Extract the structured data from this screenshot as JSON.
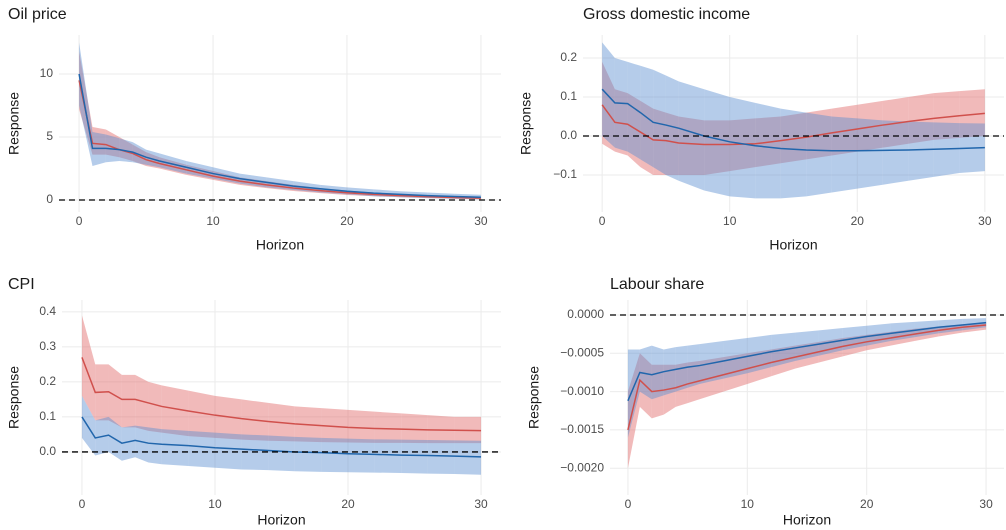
{
  "chart_data": [
    {
      "type": "line",
      "title": "Oil price",
      "xlabel": "Horizon",
      "ylabel": "Response",
      "x": [
        0,
        1,
        2,
        3,
        4,
        5,
        6,
        8,
        10,
        12,
        14,
        16,
        18,
        20,
        22,
        24,
        26,
        28,
        30
      ],
      "xlim": [
        -1.5,
        31.5
      ],
      "xticks": [
        0,
        10,
        20,
        30
      ],
      "ylim": [
        -0.95,
        13.1
      ],
      "yticks": [
        0,
        5,
        10
      ],
      "grid": true,
      "reference_line": 0,
      "series": [
        {
          "color": "#d0504c",
          "band_color": "#e06666",
          "values": [
            9.5,
            4.5,
            4.4,
            4.0,
            3.7,
            3.2,
            2.9,
            2.4,
            1.9,
            1.5,
            1.2,
            0.95,
            0.75,
            0.58,
            0.45,
            0.35,
            0.27,
            0.2,
            0.15
          ],
          "lower": [
            7.2,
            3.6,
            3.6,
            3.4,
            3.1,
            2.7,
            2.5,
            2.0,
            1.6,
            1.2,
            0.95,
            0.72,
            0.55,
            0.4,
            0.3,
            0.22,
            0.15,
            0.1,
            0.06
          ],
          "upper": [
            11.8,
            5.8,
            5.6,
            5.0,
            4.4,
            3.8,
            3.4,
            2.8,
            2.3,
            1.8,
            1.5,
            1.2,
            0.95,
            0.76,
            0.6,
            0.48,
            0.38,
            0.3,
            0.25
          ]
        },
        {
          "color": "#2166ac",
          "band_color": "#5b8fd0",
          "values": [
            10,
            4.1,
            4.1,
            4.0,
            3.8,
            3.4,
            3.1,
            2.6,
            2.1,
            1.7,
            1.4,
            1.1,
            0.9,
            0.7,
            0.55,
            0.45,
            0.35,
            0.28,
            0.22
          ],
          "lower": [
            7.5,
            2.7,
            3.0,
            3.1,
            3.0,
            2.8,
            2.6,
            2.1,
            1.7,
            1.3,
            1.0,
            0.8,
            0.6,
            0.45,
            0.3,
            0.22,
            0.15,
            0.1,
            0.05
          ],
          "upper": [
            12.5,
            5.4,
            5.2,
            4.9,
            4.6,
            4.0,
            3.7,
            3.1,
            2.6,
            2.1,
            1.8,
            1.5,
            1.2,
            1.0,
            0.85,
            0.7,
            0.6,
            0.5,
            0.42
          ]
        }
      ]
    },
    {
      "type": "line",
      "title": "Gross domestic income",
      "xlabel": "Horizon",
      "ylabel": "Response",
      "x": [
        0,
        1,
        2,
        3,
        4,
        5,
        6,
        8,
        10,
        12,
        14,
        16,
        18,
        20,
        22,
        24,
        26,
        28,
        30
      ],
      "xlim": [
        -1.5,
        31.5
      ],
      "xticks": [
        0,
        10,
        20,
        30
      ],
      "ylim": [
        -0.195,
        0.259
      ],
      "yticks": [
        {
          "value": -0.1,
          "label": "−0.1"
        },
        {
          "value": 0,
          "label": "0.0"
        },
        0.1,
        0.2
      ],
      "grid": true,
      "reference_line": 0,
      "series": [
        {
          "color": "#d0504c",
          "band_color": "#e06666",
          "values": [
            0.08,
            0.035,
            0.03,
            0.01,
            -0.01,
            -0.012,
            -0.018,
            -0.022,
            -0.022,
            -0.02,
            -0.012,
            -0.003,
            0.008,
            0.018,
            0.028,
            0.037,
            0.045,
            0.052,
            0.058
          ],
          "lower": [
            -0.02,
            -0.04,
            -0.05,
            -0.08,
            -0.1,
            -0.1,
            -0.1,
            -0.1,
            -0.09,
            -0.08,
            -0.07,
            -0.06,
            -0.05,
            -0.04,
            -0.03,
            -0.02,
            -0.01,
            -0.005,
            0.0
          ],
          "upper": [
            0.19,
            0.12,
            0.11,
            0.09,
            0.07,
            0.06,
            0.05,
            0.04,
            0.04,
            0.045,
            0.05,
            0.06,
            0.07,
            0.08,
            0.09,
            0.1,
            0.11,
            0.115,
            0.12
          ]
        },
        {
          "color": "#2166ac",
          "band_color": "#5b8fd0",
          "values": [
            0.12,
            0.085,
            0.083,
            0.06,
            0.035,
            0.028,
            0.02,
            0.0,
            -0.015,
            -0.025,
            -0.032,
            -0.036,
            -0.038,
            -0.038,
            -0.037,
            -0.036,
            -0.034,
            -0.032,
            -0.03
          ],
          "lower": [
            0.0,
            -0.03,
            -0.04,
            -0.06,
            -0.08,
            -0.1,
            -0.115,
            -0.14,
            -0.155,
            -0.16,
            -0.16,
            -0.155,
            -0.145,
            -0.135,
            -0.125,
            -0.115,
            -0.105,
            -0.095,
            -0.09
          ],
          "upper": [
            0.24,
            0.2,
            0.19,
            0.18,
            0.17,
            0.155,
            0.14,
            0.12,
            0.1,
            0.085,
            0.07,
            0.06,
            0.05,
            0.045,
            0.04,
            0.037,
            0.035,
            0.033,
            0.032
          ]
        }
      ]
    },
    {
      "type": "line",
      "title": "CPI",
      "xlabel": "Horizon",
      "ylabel": "Response",
      "x": [
        0,
        1,
        2,
        3,
        4,
        5,
        6,
        8,
        10,
        12,
        14,
        16,
        18,
        20,
        22,
        24,
        26,
        28,
        30
      ],
      "xlim": [
        -1.5,
        31.5
      ],
      "xticks": [
        0,
        10,
        20,
        30
      ],
      "ylim": [
        -0.123,
        0.434
      ],
      "yticks": [
        {
          "value": 0,
          "label": "0.0"
        },
        0.1,
        0.2,
        0.3,
        0.4
      ],
      "grid": true,
      "reference_line": 0,
      "series": [
        {
          "color": "#d0504c",
          "band_color": "#e06666",
          "values": [
            0.27,
            0.17,
            0.172,
            0.15,
            0.15,
            0.14,
            0.13,
            0.117,
            0.105,
            0.095,
            0.087,
            0.08,
            0.075,
            0.07,
            0.067,
            0.065,
            0.063,
            0.062,
            0.061
          ],
          "lower": [
            0.16,
            0.09,
            0.09,
            0.07,
            0.07,
            0.06,
            0.055,
            0.045,
            0.04,
            0.035,
            0.032,
            0.03,
            0.028,
            0.027,
            0.026,
            0.026,
            0.025,
            0.025,
            0.025
          ],
          "upper": [
            0.39,
            0.25,
            0.25,
            0.22,
            0.22,
            0.2,
            0.19,
            0.175,
            0.16,
            0.15,
            0.14,
            0.13,
            0.125,
            0.12,
            0.115,
            0.11,
            0.105,
            0.1,
            0.1
          ]
        },
        {
          "color": "#2166ac",
          "band_color": "#5b8fd0",
          "values": [
            0.1,
            0.04,
            0.048,
            0.025,
            0.033,
            0.025,
            0.022,
            0.018,
            0.012,
            0.008,
            0.004,
            0.0,
            -0.002,
            -0.005,
            -0.007,
            -0.009,
            -0.01,
            -0.012,
            -0.014
          ],
          "lower": [
            0.04,
            -0.01,
            0.0,
            -0.025,
            -0.015,
            -0.03,
            -0.035,
            -0.04,
            -0.045,
            -0.05,
            -0.052,
            -0.055,
            -0.057,
            -0.058,
            -0.059,
            -0.06,
            -0.062,
            -0.063,
            -0.065
          ],
          "upper": [
            0.16,
            0.09,
            0.1,
            0.07,
            0.075,
            0.07,
            0.065,
            0.06,
            0.055,
            0.05,
            0.047,
            0.043,
            0.04,
            0.038,
            0.036,
            0.035,
            0.034,
            0.033,
            0.032
          ]
        }
      ]
    },
    {
      "type": "line",
      "title": "Labour share",
      "xlabel": "Horizon",
      "ylabel": "Response",
      "x": [
        0,
        1,
        2,
        3,
        4,
        5,
        6,
        8,
        10,
        12,
        14,
        16,
        18,
        20,
        22,
        24,
        26,
        28,
        30
      ],
      "xlim": [
        -1.5,
        31.5
      ],
      "xticks": [
        0,
        10,
        20,
        30
      ],
      "ylim": [
        -0.00235,
        0.000196
      ],
      "yticks": [
        {
          "value": 0,
          "label": "0.0000"
        },
        {
          "value": -0.0005,
          "label": "−0.0005"
        },
        {
          "value": -0.001,
          "label": "−0.0010"
        },
        {
          "value": -0.0015,
          "label": "−0.0015"
        },
        {
          "value": -0.002,
          "label": "−0.0020"
        }
      ],
      "grid": true,
      "reference_line": 0,
      "series": [
        {
          "color": "#d0504c",
          "band_color": "#e06666",
          "values": [
            -0.0015,
            -0.00085,
            -0.001,
            -0.00098,
            -0.00095,
            -0.0009,
            -0.00086,
            -0.00078,
            -0.0007,
            -0.00062,
            -0.00055,
            -0.00048,
            -0.00041,
            -0.00035,
            -0.0003,
            -0.00025,
            -0.0002,
            -0.00016,
            -0.00013
          ],
          "lower": [
            -0.002,
            -0.0012,
            -0.00135,
            -0.0013,
            -0.0012,
            -0.00115,
            -0.0011,
            -0.001,
            -0.0009,
            -0.0008,
            -0.0007,
            -0.00062,
            -0.00054,
            -0.00046,
            -0.0004,
            -0.00034,
            -0.00028,
            -0.00023,
            -0.00019
          ],
          "upper": [
            -0.001,
            -0.0005,
            -0.00065,
            -0.00065,
            -0.00065,
            -0.00062,
            -0.0006,
            -0.00055,
            -0.0005,
            -0.00045,
            -0.0004,
            -0.00035,
            -0.0003,
            -0.00026,
            -0.00022,
            -0.00018,
            -0.00015,
            -0.00012,
            -0.0001
          ]
        },
        {
          "color": "#2166ac",
          "band_color": "#5b8fd0",
          "values": [
            -0.00112,
            -0.00075,
            -0.00078,
            -0.00074,
            -0.00071,
            -0.00068,
            -0.00066,
            -0.0006,
            -0.00054,
            -0.00048,
            -0.00043,
            -0.00038,
            -0.00033,
            -0.00028,
            -0.00024,
            -0.0002,
            -0.00016,
            -0.00013,
            -0.0001
          ],
          "lower": [
            -0.0016,
            -0.001,
            -0.0011,
            -0.00105,
            -0.001,
            -0.00095,
            -0.0009,
            -0.00083,
            -0.00076,
            -0.00068,
            -0.0006,
            -0.00053,
            -0.00046,
            -0.0004,
            -0.00034,
            -0.00029,
            -0.00024,
            -0.0002,
            -0.00016
          ],
          "upper": [
            -0.00045,
            -0.00045,
            -0.0004,
            -0.00045,
            -0.00042,
            -0.0004,
            -0.00038,
            -0.00034,
            -0.0003,
            -0.00026,
            -0.00023,
            -0.0002,
            -0.00017,
            -0.00014,
            -0.00011,
            -9e-05,
            -7e-05,
            -5e-05,
            -4e-05
          ]
        }
      ]
    }
  ]
}
